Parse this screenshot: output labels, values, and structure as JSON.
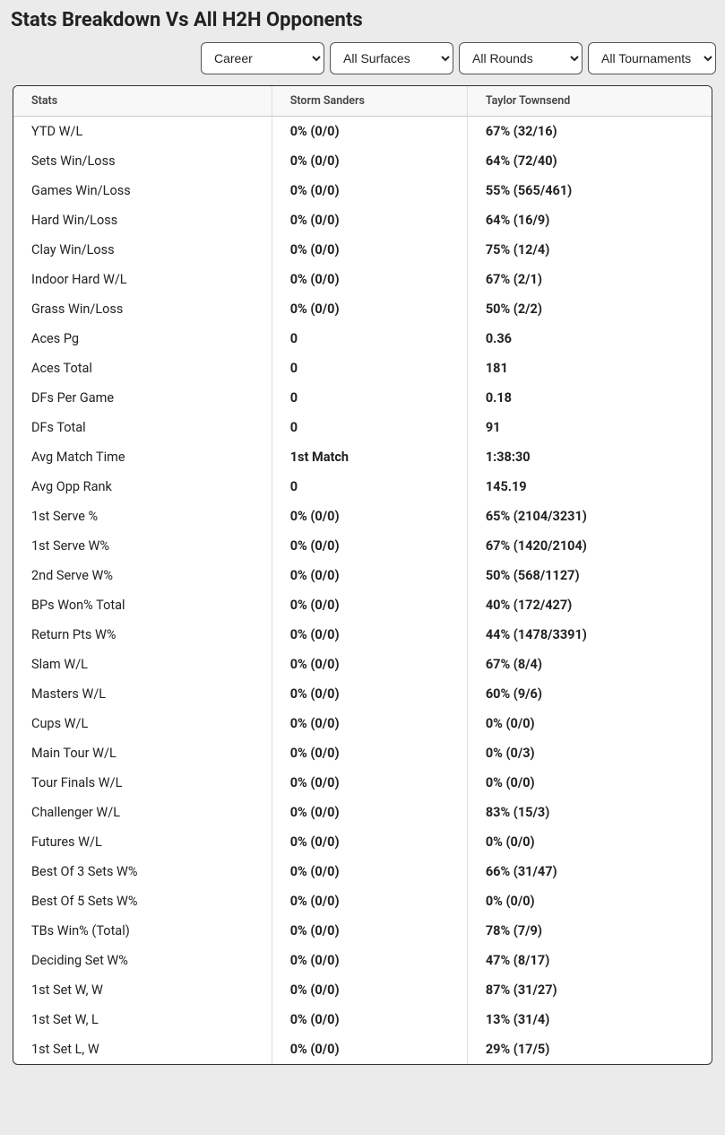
{
  "title": "Stats Breakdown Vs All H2H Opponents",
  "filters": {
    "period": "Career",
    "surface": "All Surfaces",
    "rounds": "All Rounds",
    "tournaments": "All Tournaments"
  },
  "table": {
    "headers": [
      "Stats",
      "Storm Sanders",
      "Taylor Townsend"
    ],
    "rows": [
      [
        "YTD W/L",
        "0% (0/0)",
        "67% (32/16)"
      ],
      [
        "Sets Win/Loss",
        "0% (0/0)",
        "64% (72/40)"
      ],
      [
        "Games Win/Loss",
        "0% (0/0)",
        "55% (565/461)"
      ],
      [
        "Hard Win/Loss",
        "0% (0/0)",
        "64% (16/9)"
      ],
      [
        "Clay Win/Loss",
        "0% (0/0)",
        "75% (12/4)"
      ],
      [
        "Indoor Hard W/L",
        "0% (0/0)",
        "67% (2/1)"
      ],
      [
        "Grass Win/Loss",
        "0% (0/0)",
        "50% (2/2)"
      ],
      [
        "Aces Pg",
        "0",
        "0.36"
      ],
      [
        "Aces Total",
        "0",
        "181"
      ],
      [
        "DFs Per Game",
        "0",
        "0.18"
      ],
      [
        "DFs Total",
        "0",
        "91"
      ],
      [
        "Avg Match Time",
        "1st Match",
        "1:38:30"
      ],
      [
        "Avg Opp Rank",
        "0",
        "145.19"
      ],
      [
        "1st Serve %",
        "0% (0/0)",
        "65% (2104/3231)"
      ],
      [
        "1st Serve W%",
        "0% (0/0)",
        "67% (1420/2104)"
      ],
      [
        "2nd Serve W%",
        "0% (0/0)",
        "50% (568/1127)"
      ],
      [
        "BPs Won% Total",
        "0% (0/0)",
        "40% (172/427)"
      ],
      [
        "Return Pts W%",
        "0% (0/0)",
        "44% (1478/3391)"
      ],
      [
        "Slam W/L",
        "0% (0/0)",
        "67% (8/4)"
      ],
      [
        "Masters W/L",
        "0% (0/0)",
        "60% (9/6)"
      ],
      [
        "Cups W/L",
        "0% (0/0)",
        "0% (0/0)"
      ],
      [
        "Main Tour W/L",
        "0% (0/0)",
        "0% (0/3)"
      ],
      [
        "Tour Finals W/L",
        "0% (0/0)",
        "0% (0/0)"
      ],
      [
        "Challenger W/L",
        "0% (0/0)",
        "83% (15/3)"
      ],
      [
        "Futures W/L",
        "0% (0/0)",
        "0% (0/0)"
      ],
      [
        "Best Of 3 Sets W%",
        "0% (0/0)",
        "66% (31/47)"
      ],
      [
        "Best Of 5 Sets W%",
        "0% (0/0)",
        "0% (0/0)"
      ],
      [
        "TBs Win% (Total)",
        "0% (0/0)",
        "78% (7/9)"
      ],
      [
        "Deciding Set W%",
        "0% (0/0)",
        "47% (8/17)"
      ],
      [
        "1st Set W, W",
        "0% (0/0)",
        "87% (31/27)"
      ],
      [
        "1st Set W, L",
        "0% (0/0)",
        "13% (31/4)"
      ],
      [
        "1st Set L, W",
        "0% (0/0)",
        "29% (17/5)"
      ]
    ]
  }
}
